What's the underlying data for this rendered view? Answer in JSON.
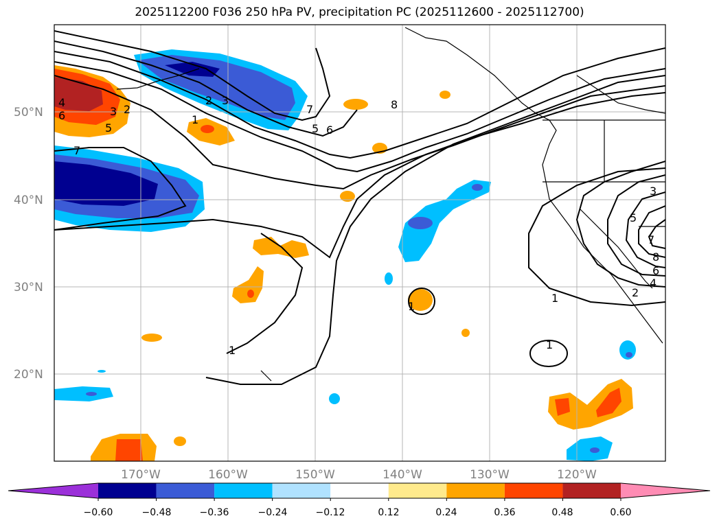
{
  "title": "2025112200 F036 250 hPa PV, precipitation PC (2025112600 - 2025112700)",
  "map": {
    "lat_labels": [
      "50°N",
      "40°N",
      "30°N",
      "20°N"
    ],
    "lon_labels": [
      "170°W",
      "160°W",
      "150°W",
      "140°W",
      "130°W",
      "120°W"
    ],
    "lat_values": [
      50,
      40,
      30,
      20
    ],
    "lon_values": [
      -170,
      -160,
      -150,
      -140,
      -130,
      -120
    ]
  },
  "colorbar": {
    "ticks": [
      "−0.60",
      "−0.48",
      "−0.36",
      "−0.24",
      "−0.12",
      "0.12",
      "0.24",
      "0.36",
      "0.48",
      "0.60"
    ],
    "colors": [
      "#9b30d9",
      "#000090",
      "#3b5bd6",
      "#00bfff",
      "#b0e2ff",
      "#ffffff",
      "#ffea8c",
      "#ffa500",
      "#ff4500",
      "#b22222",
      "#ff8cb4"
    ]
  },
  "contour_labels": [
    "4",
    "6",
    "3",
    "2",
    "5",
    "7",
    "2",
    "3",
    "1",
    "7",
    "5",
    "6",
    "8",
    "1",
    "1",
    "1",
    "3",
    "5",
    "7",
    "8",
    "6",
    "4",
    "2",
    "1"
  ]
}
